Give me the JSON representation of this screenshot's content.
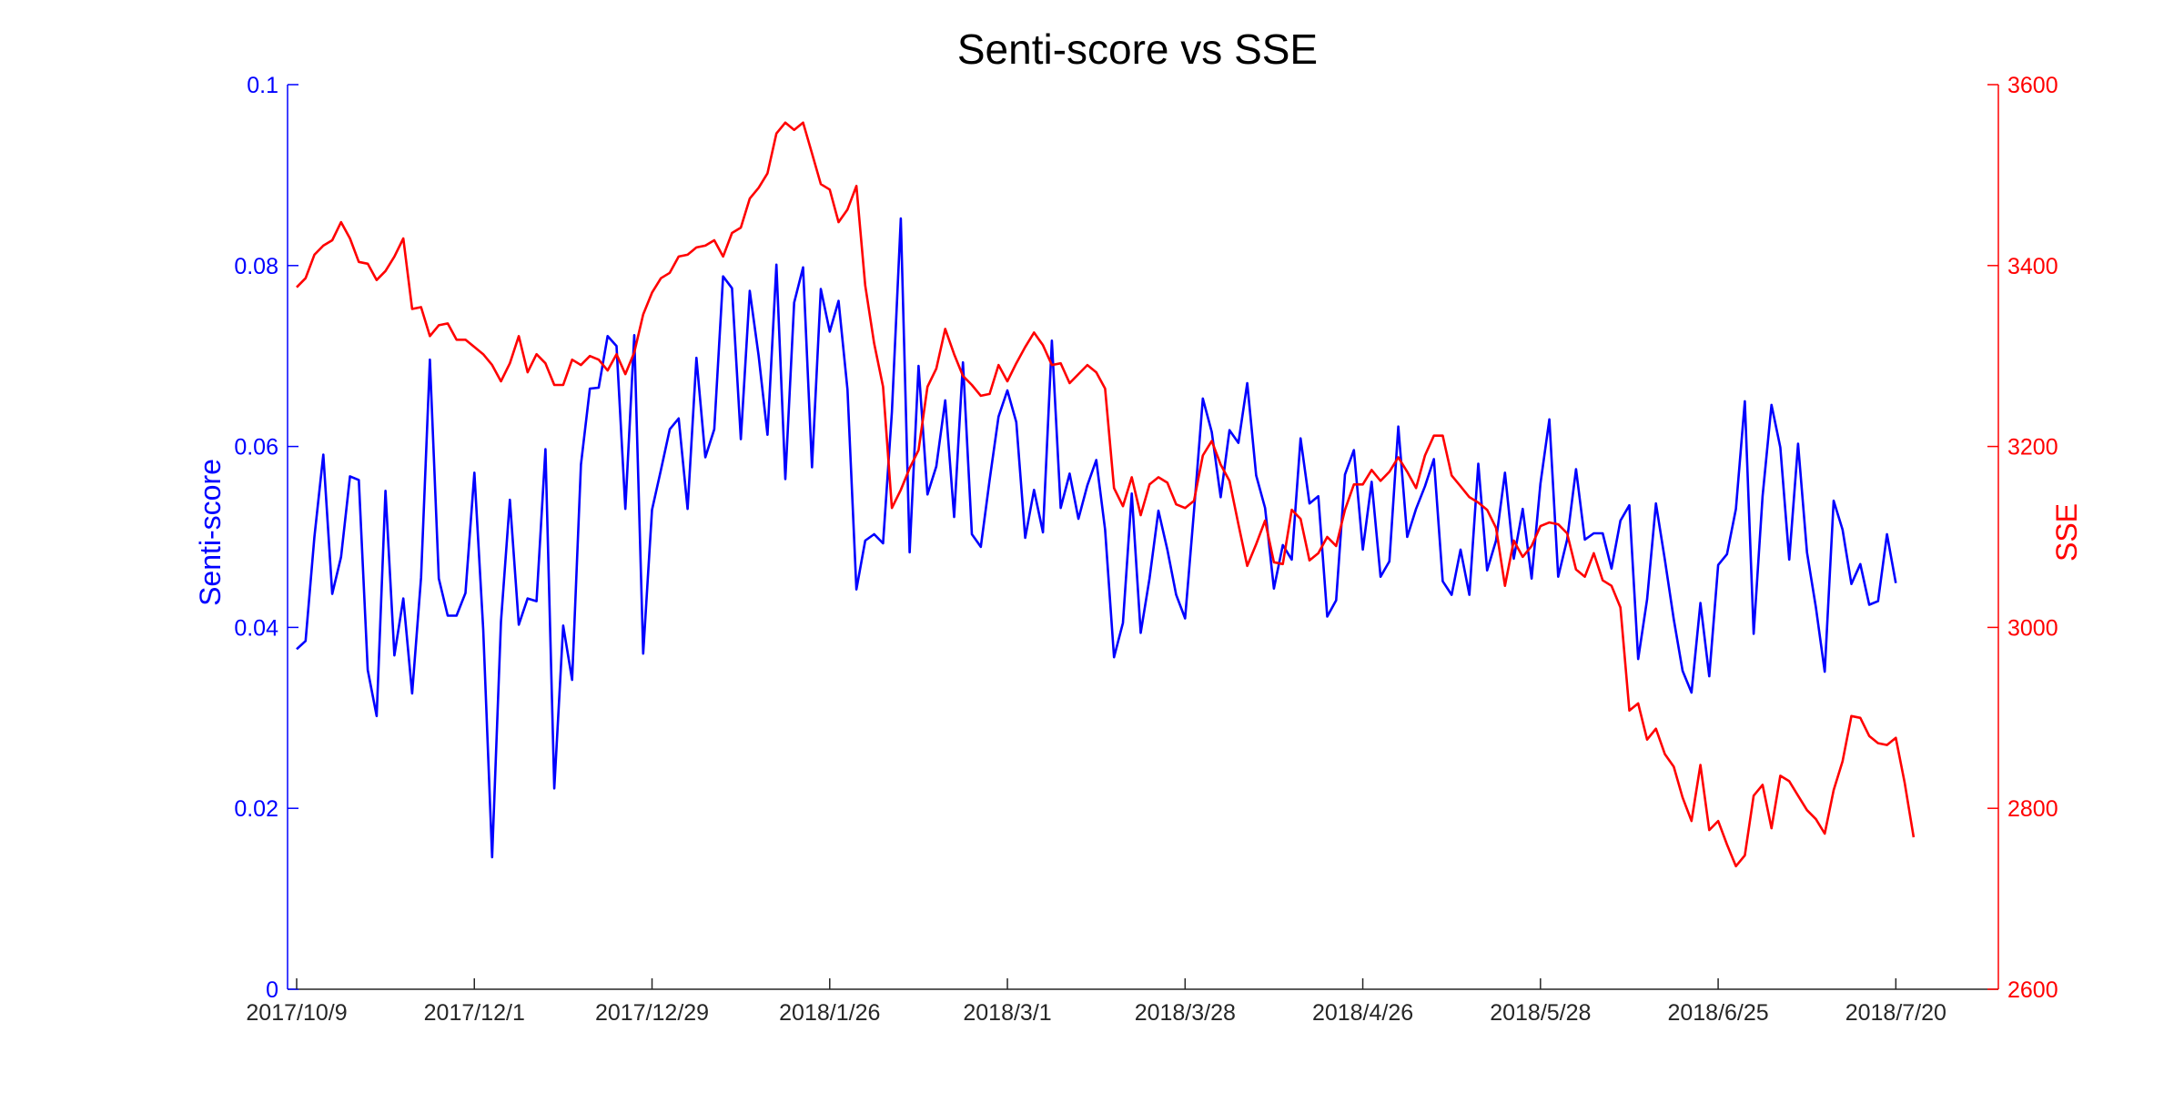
{
  "chart_data": {
    "type": "line",
    "title": "Senti-score vs SSE",
    "xlabel": "",
    "x_tick_labels": [
      "2017/10/9",
      "2017/12/1",
      "2017/12/29",
      "2018/1/26",
      "2018/3/1",
      "2018/3/28",
      "2018/4/26",
      "2018/5/28",
      "2018/6/25",
      "2018/7/20"
    ],
    "x_tick_index": [
      0,
      20,
      40,
      60,
      80,
      100,
      120,
      140,
      160,
      180
    ],
    "n_points": 191,
    "y_left": {
      "label": "Senti-score",
      "color": "#0000ff",
      "lim": [
        0,
        0.1
      ],
      "ticks": [
        0,
        0.02,
        0.04,
        0.06,
        0.08,
        0.1
      ],
      "tick_labels": [
        "0",
        "0.02",
        "0.04",
        "0.06",
        "0.08",
        "0.1"
      ]
    },
    "y_right": {
      "label": "SSE",
      "color": "#ff0000",
      "lim": [
        2600,
        3600
      ],
      "ticks": [
        2600,
        2800,
        3000,
        3200,
        3400,
        3600
      ],
      "tick_labels": [
        "2600",
        "2800",
        "3000",
        "3200",
        "3400",
        "3600"
      ]
    },
    "series": [
      {
        "axis": "left",
        "color": "#0000ff",
        "values": [
          0.0376,
          0.0385,
          0.05,
          0.0591,
          0.0437,
          0.0478,
          0.0567,
          0.0563,
          0.0353,
          0.0302,
          0.0551,
          0.0369,
          0.0432,
          0.0327,
          0.0455,
          0.0696,
          0.0454,
          0.0413,
          0.0413,
          0.0438,
          0.0571,
          0.0398,
          0.0146,
          0.0406,
          0.0541,
          0.0403,
          0.0432,
          0.0429,
          0.0597,
          0.0222,
          0.0402,
          0.0342,
          0.058,
          0.0664,
          0.0665,
          0.0722,
          0.0711,
          0.0531,
          0.0723,
          0.0371,
          0.053,
          0.0574,
          0.0619,
          0.0631,
          0.0531,
          0.0698,
          0.0588,
          0.0619,
          0.0788,
          0.0775,
          0.0608,
          0.0772,
          0.07,
          0.0613,
          0.0801,
          0.0564,
          0.0759,
          0.0798,
          0.0577,
          0.0774,
          0.0727,
          0.0761,
          0.0663,
          0.0442,
          0.0496,
          0.0503,
          0.0493,
          0.0638,
          0.0852,
          0.0483,
          0.0689,
          0.0547,
          0.0578,
          0.0651,
          0.0522,
          0.0693,
          0.0503,
          0.0489,
          0.0563,
          0.0633,
          0.0662,
          0.0627,
          0.0499,
          0.0552,
          0.0505,
          0.0717,
          0.0532,
          0.057,
          0.052,
          0.0557,
          0.0585,
          0.0508,
          0.0367,
          0.0405,
          0.0548,
          0.0394,
          0.0454,
          0.0529,
          0.0486,
          0.0436,
          0.041,
          0.0529,
          0.0653,
          0.0616,
          0.0544,
          0.0618,
          0.0604,
          0.067,
          0.0568,
          0.0532,
          0.0443,
          0.0491,
          0.0475,
          0.0609,
          0.0537,
          0.0545,
          0.0412,
          0.043,
          0.0569,
          0.0596,
          0.0486,
          0.0561,
          0.0456,
          0.0473,
          0.0622,
          0.05,
          0.0531,
          0.0556,
          0.0586,
          0.0451,
          0.0436,
          0.0486,
          0.0436,
          0.0581,
          0.0463,
          0.0496,
          0.0571,
          0.0476,
          0.0531,
          0.0454,
          0.0559,
          0.063,
          0.0456,
          0.0497,
          0.0575,
          0.0497,
          0.0504,
          0.0504,
          0.0465,
          0.0518,
          0.0535,
          0.0365,
          0.0431,
          0.0537,
          0.0475,
          0.0409,
          0.0352,
          0.0328,
          0.0427,
          0.0346,
          0.0469,
          0.0481,
          0.0531,
          0.065,
          0.0393,
          0.0545,
          0.0646,
          0.0599,
          0.0475,
          0.0603,
          0.0483,
          0.0422,
          0.0351,
          0.054,
          0.0508,
          0.0448,
          0.047,
          0.0425,
          0.0429,
          0.0503,
          0.0449
        ]
      },
      {
        "axis": "right",
        "color": "#ff0000",
        "values": [
          3376,
          3386,
          3412,
          3422,
          3428,
          3448,
          3430,
          3404,
          3402,
          3384,
          3394,
          3410,
          3430,
          3352,
          3354,
          3322,
          3334,
          3336,
          3318,
          3318,
          3310,
          3302,
          3290,
          3272,
          3292,
          3322,
          3282,
          3302,
          3292,
          3268,
          3268,
          3296,
          3290,
          3300,
          3296,
          3284,
          3302,
          3280,
          3304,
          3346,
          3370,
          3386,
          3392,
          3410,
          3412,
          3420,
          3422,
          3428,
          3410,
          3436,
          3442,
          3474,
          3486,
          3502,
          3546,
          3558,
          3550,
          3558,
          3524,
          3490,
          3484,
          3448,
          3462,
          3488,
          3378,
          3314,
          3266,
          3132,
          3152,
          3176,
          3196,
          3266,
          3286,
          3330,
          3302,
          3278,
          3268,
          3256,
          3258,
          3290,
          3272,
          3292,
          3310,
          3326,
          3312,
          3290,
          3292,
          3270,
          3280,
          3290,
          3282,
          3264,
          3154,
          3134,
          3166,
          3124,
          3158,
          3166,
          3160,
          3136,
          3132,
          3140,
          3190,
          3206,
          3180,
          3162,
          3114,
          3068,
          3092,
          3118,
          3072,
          3070,
          3130,
          3120,
          3074,
          3082,
          3100,
          3090,
          3130,
          3158,
          3158,
          3174,
          3162,
          3172,
          3188,
          3172,
          3154,
          3190,
          3212,
          3212,
          3168,
          3156,
          3144,
          3138,
          3130,
          3110,
          3046,
          3096,
          3078,
          3090,
          3112,
          3116,
          3114,
          3104,
          3064,
          3056,
          3082,
          3052,
          3046,
          3022,
          2908,
          2916,
          2876,
          2888,
          2860,
          2846,
          2812,
          2786,
          2848,
          2776,
          2786,
          2760,
          2736,
          2748,
          2814,
          2826,
          2778,
          2836,
          2830,
          2814,
          2798,
          2788,
          2772,
          2820,
          2852,
          2902,
          2900,
          2880,
          2872,
          2870,
          2878,
          2828,
          2768
        ]
      }
    ],
    "grid": false,
    "legend": "none"
  }
}
